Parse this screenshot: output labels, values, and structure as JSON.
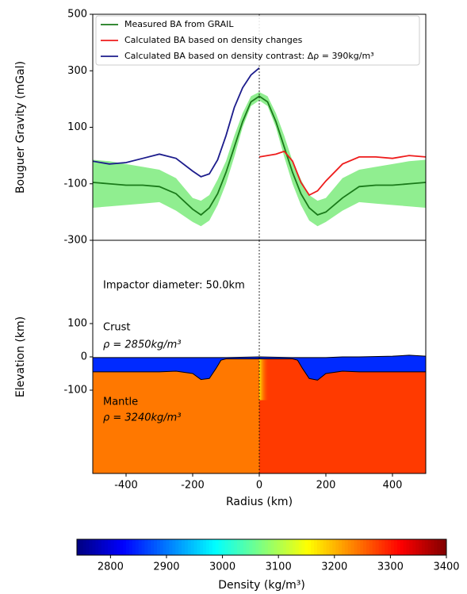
{
  "chart_data": [
    {
      "type": "line",
      "ylabel": "Bouguer Gravity (mGal)",
      "x": [
        -500,
        -450,
        -400,
        -350,
        -300,
        -250,
        -200,
        -175,
        -150,
        -125,
        -100,
        -75,
        -50,
        -25,
        0,
        25,
        50,
        75,
        100,
        125,
        150,
        175,
        200,
        250,
        300,
        350,
        400,
        450,
        500
      ],
      "xlim": [
        -500,
        500
      ],
      "ylim": [
        -300,
        500
      ],
      "yticks": [
        -300,
        -100,
        100,
        300,
        500
      ],
      "series": [
        {
          "name": "Measured BA from GRAIL",
          "color": "#1a7a1a",
          "values": [
            -95,
            -100,
            -105,
            -105,
            -110,
            -135,
            -190,
            -210,
            -185,
            -135,
            -60,
            30,
            120,
            190,
            210,
            190,
            120,
            30,
            -60,
            -135,
            -185,
            -210,
            -200,
            -150,
            -110,
            -105,
            -105,
            -100,
            -95
          ]
        },
        {
          "name": "Calculated BA based on density changes",
          "color": "#ee1c1c",
          "values": [
            null,
            null,
            null,
            null,
            null,
            null,
            null,
            null,
            null,
            null,
            null,
            null,
            null,
            null,
            -5,
            0,
            5,
            15,
            -20,
            -95,
            -140,
            -125,
            -90,
            -30,
            -5,
            -5,
            -10,
            0,
            -5
          ]
        },
        {
          "name": "Calculated BA based on density contrast: Δρ = 390kg/m³",
          "color": "#1c1c8c",
          "values": [
            -20,
            -30,
            -25,
            -10,
            5,
            -10,
            -55,
            -75,
            -65,
            -15,
            70,
            170,
            240,
            285,
            310,
            null,
            null,
            null,
            null,
            null,
            null,
            null,
            null,
            null,
            null,
            null,
            null,
            null,
            null
          ]
        }
      ],
      "band": {
        "color": "#90ee90",
        "upper": [
          -15,
          -20,
          -30,
          -40,
          -50,
          -80,
          -150,
          -160,
          -140,
          -85,
          -20,
          70,
          150,
          210,
          225,
          210,
          150,
          70,
          -20,
          -85,
          -140,
          -160,
          -150,
          -80,
          -50,
          -40,
          -30,
          -20,
          -15
        ],
        "lower": [
          -185,
          -180,
          -175,
          -170,
          -165,
          -195,
          -235,
          -250,
          -230,
          -175,
          -100,
          -5,
          100,
          175,
          195,
          175,
          100,
          -5,
          -100,
          -175,
          -230,
          -250,
          -235,
          -195,
          -165,
          -170,
          -175,
          -180,
          -185
        ]
      },
      "vline": 0,
      "legend": "upper left"
    },
    {
      "type": "section",
      "xlabel": "Radius (km)",
      "ylabel": "Elevation (km)",
      "x": [
        -500,
        -400,
        -300,
        -250,
        -200,
        -175,
        -150,
        -130,
        -115,
        -100,
        0,
        100,
        115,
        130,
        150,
        175,
        200,
        250,
        300,
        400,
        450,
        500
      ],
      "surface": [
        -2,
        -2,
        -2,
        -2,
        -2,
        -2,
        -2,
        -2,
        -2,
        -2,
        0,
        -2,
        -2,
        -2,
        -2,
        -2,
        -2,
        0,
        0,
        2,
        5,
        2
      ],
      "moho": [
        -45,
        -45,
        -45,
        -43,
        -50,
        -68,
        -65,
        -35,
        -10,
        -6,
        -6,
        -6,
        -10,
        -35,
        -65,
        -70,
        -50,
        -43,
        -45,
        -45,
        -45,
        -45
      ],
      "xlim": [
        -500,
        500
      ],
      "ylim": [
        -350,
        350
      ],
      "xticks": [
        -400,
        -200,
        0,
        200,
        400
      ],
      "yticks": [
        -100,
        0,
        100
      ],
      "crust_density": 2850,
      "mantle_density_left": 3240,
      "mantle_density_right": 3280,
      "anomaly": {
        "x": [
          0,
          30
        ],
        "y": [
          -5,
          -130
        ],
        "density": 3170
      },
      "vline": 0,
      "annotations": [
        "Impactor diameter: 50.0km",
        "Crust",
        "ρ = 2850kg/m³",
        "Mantle",
        "ρ = 3240kg/m³"
      ]
    },
    {
      "type": "colorbar",
      "label": "Density (kg/m³)",
      "colormap": "jet",
      "clim": [
        2740,
        3400
      ],
      "ticks": [
        2800,
        2900,
        3000,
        3100,
        3200,
        3300,
        3400
      ]
    }
  ]
}
